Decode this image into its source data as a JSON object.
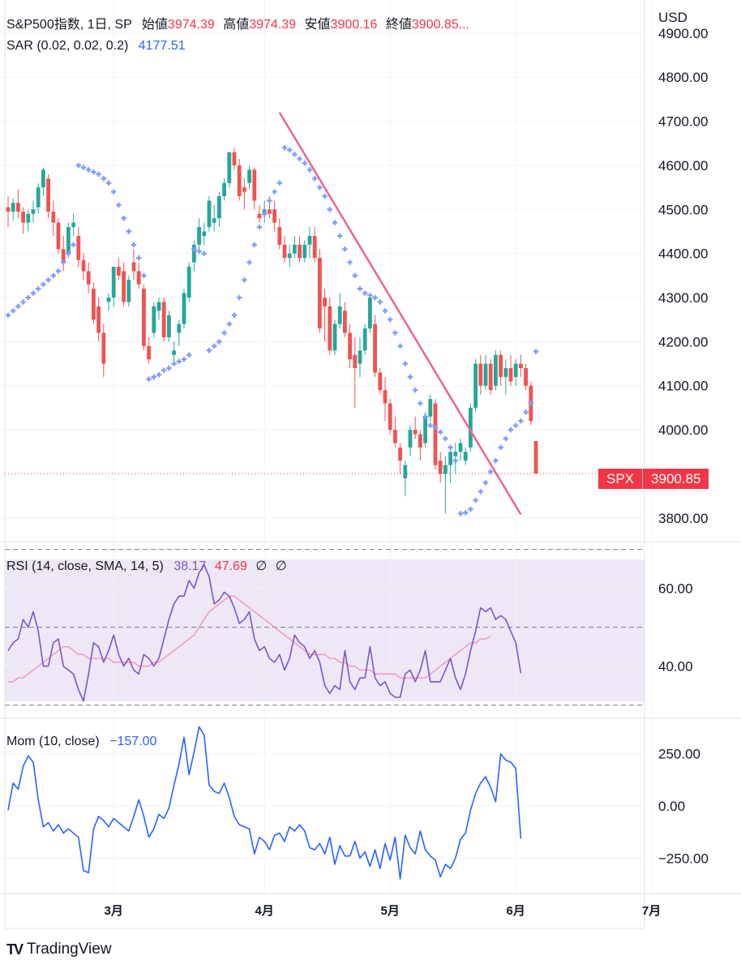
{
  "header": {
    "symbol": "S&P500指数, 1日, SP",
    "open_label": "始値",
    "open": "3974.39",
    "high_label": "高値",
    "high": "3974.39",
    "low_label": "安値",
    "low": "3900.16",
    "close_label": "終値",
    "close": "3900.85..."
  },
  "sar_legend": {
    "label": "SAR (0.02, 0.02, 0.2)",
    "value": "4177.51"
  },
  "rsi_legend": {
    "label": "RSI (14, close, SMA, 14, 5)",
    "rsi": "38.17",
    "sma": "47.69",
    "na1": "∅",
    "na2": "∅"
  },
  "mom_legend": {
    "label": "Mom (10, close)",
    "value": "−157.00"
  },
  "currency": "USD",
  "price_tag": {
    "symbol": "SPX",
    "value": "3900.85"
  },
  "brand": {
    "logo": "TV",
    "name": "TradingView"
  },
  "colors": {
    "up": "#26a69a",
    "down": "#ef5350",
    "sar": "#7b9cff",
    "trendline": "#f06292",
    "rsi": "#7e57c2",
    "rsi_sma": "#f48fb1",
    "mom": "#2962ff",
    "rsi_band": "#ede7f6"
  },
  "chart_data": [
    {
      "type": "candlestick",
      "ylim": [
        3750,
        4920
      ],
      "yticks": [
        "4900.00",
        "4800.00",
        "4700.00",
        "4600.00",
        "4500.00",
        "4400.00",
        "4300.00",
        "4200.00",
        "4100.00",
        "4000.00",
        "3800.00"
      ],
      "ytick_values": [
        4900,
        4800,
        4700,
        4600,
        4500,
        4400,
        4300,
        4200,
        4100,
        4000,
        3800
      ],
      "xticks": [
        "3月",
        "4月",
        "5月",
        "6月",
        "7月"
      ],
      "xtick_index": [
        21,
        51,
        76,
        101,
        128
      ],
      "last_price": 3900.85,
      "ohlc": [
        [
          4505,
          4530,
          4460,
          4495
        ],
        [
          4495,
          4525,
          4475,
          4515
        ],
        [
          4515,
          4545,
          4480,
          4495
        ],
        [
          4495,
          4505,
          4445,
          4470
        ],
        [
          4470,
          4500,
          4450,
          4490
        ],
        [
          4490,
          4520,
          4470,
          4500
        ],
        [
          4505,
          4560,
          4490,
          4550
        ],
        [
          4550,
          4595,
          4530,
          4590
        ],
        [
          4570,
          4580,
          4480,
          4495
        ],
        [
          4495,
          4520,
          4440,
          4470
        ],
        [
          4470,
          4480,
          4400,
          4410
        ],
        [
          4410,
          4440,
          4360,
          4380
        ],
        [
          4400,
          4470,
          4390,
          4460
        ],
        [
          4460,
          4490,
          4440,
          4470
        ],
        [
          4440,
          4460,
          4370,
          4385
        ],
        [
          4385,
          4400,
          4340,
          4360
        ],
        [
          4360,
          4380,
          4310,
          4330
        ],
        [
          4320,
          4335,
          4240,
          4250
        ],
        [
          4280,
          4300,
          4200,
          4220
        ],
        [
          4220,
          4240,
          4120,
          4150
        ],
        [
          4290,
          4310,
          4270,
          4300
        ],
        [
          4300,
          4370,
          4280,
          4370
        ],
        [
          4370,
          4390,
          4340,
          4350
        ],
        [
          4360,
          4380,
          4280,
          4290
        ],
        [
          4290,
          4350,
          4280,
          4340
        ],
        [
          4380,
          4410,
          4340,
          4360
        ],
        [
          4360,
          4380,
          4320,
          4330
        ],
        [
          4320,
          4330,
          4180,
          4190
        ],
        [
          4190,
          4210,
          4150,
          4160
        ],
        [
          4220,
          4290,
          4210,
          4280
        ],
        [
          4270,
          4300,
          4250,
          4290
        ],
        [
          4290,
          4300,
          4200,
          4210
        ],
        [
          4210,
          4270,
          4200,
          4260
        ],
        [
          4170,
          4200,
          4150,
          4180
        ],
        [
          4220,
          4250,
          4190,
          4240
        ],
        [
          4240,
          4320,
          4230,
          4310
        ],
        [
          4300,
          4380,
          4290,
          4370
        ],
        [
          4380,
          4430,
          4360,
          4420
        ],
        [
          4420,
          4480,
          4410,
          4460
        ],
        [
          4440,
          4470,
          4420,
          4450
        ],
        [
          4460,
          4530,
          4450,
          4520
        ],
        [
          4470,
          4510,
          4450,
          4480
        ],
        [
          4480,
          4540,
          4460,
          4530
        ],
        [
          4530,
          4570,
          4520,
          4560
        ],
        [
          4560,
          4630,
          4550,
          4630
        ],
        [
          4630,
          4640,
          4590,
          4600
        ],
        [
          4600,
          4615,
          4520,
          4530
        ],
        [
          4550,
          4570,
          4500,
          4540
        ],
        [
          4560,
          4600,
          4545,
          4590
        ],
        [
          4590,
          4595,
          4500,
          4520
        ],
        [
          4490,
          4510,
          4470,
          4480
        ],
        [
          4490,
          4520,
          4470,
          4500
        ],
        [
          4500,
          4530,
          4480,
          4490
        ],
        [
          4500,
          4520,
          4450,
          4470
        ],
        [
          4460,
          4480,
          4410,
          4420
        ],
        [
          4420,
          4440,
          4380,
          4390
        ],
        [
          4390,
          4420,
          4370,
          4400
        ],
        [
          4400,
          4440,
          4390,
          4420
        ],
        [
          4420,
          4440,
          4380,
          4390
        ],
        [
          4390,
          4430,
          4380,
          4420
        ],
        [
          4420,
          4460,
          4390,
          4440
        ],
        [
          4440,
          4460,
          4380,
          4390
        ],
        [
          4390,
          4410,
          4220,
          4230
        ],
        [
          4300,
          4320,
          4200,
          4280
        ],
        [
          4280,
          4300,
          4170,
          4180
        ],
        [
          4180,
          4250,
          4170,
          4240
        ],
        [
          4240,
          4310,
          4230,
          4280
        ],
        [
          4270,
          4290,
          4210,
          4220
        ],
        [
          4220,
          4240,
          4140,
          4160
        ],
        [
          4170,
          4210,
          4050,
          4140
        ],
        [
          4150,
          4210,
          4120,
          4180
        ],
        [
          4180,
          4240,
          4170,
          4230
        ],
        [
          4230,
          4310,
          4220,
          4300
        ],
        [
          4240,
          4260,
          4120,
          4130
        ],
        [
          4130,
          4140,
          4080,
          4090
        ],
        [
          4090,
          4120,
          4020,
          4060
        ],
        [
          4060,
          4070,
          3990,
          4000
        ],
        [
          4000,
          4030,
          3960,
          3970
        ],
        [
          3960,
          3970,
          3900,
          3930
        ],
        [
          3890,
          3930,
          3850,
          3920
        ],
        [
          3960,
          4010,
          3940,
          4000
        ],
        [
          4000,
          4030,
          3980,
          3990
        ],
        [
          3990,
          4000,
          3930,
          3960
        ],
        [
          3970,
          4040,
          3960,
          4030
        ],
        [
          4030,
          4080,
          4020,
          4070
        ],
        [
          4060,
          4070,
          3910,
          3920
        ],
        [
          3930,
          3950,
          3880,
          3900
        ],
        [
          3900,
          3940,
          3810,
          3920
        ],
        [
          3920,
          3960,
          3880,
          3950
        ],
        [
          3940,
          3970,
          3900,
          3950
        ],
        [
          3950,
          3980,
          3930,
          3970
        ],
        [
          3930,
          3960,
          3920,
          3950
        ],
        [
          3960,
          4060,
          3950,
          4050
        ],
        [
          4050,
          4160,
          4040,
          4150
        ],
        [
          4150,
          4170,
          4080,
          4100
        ],
        [
          4100,
          4170,
          4090,
          4150
        ],
        [
          4150,
          4160,
          4080,
          4090
        ],
        [
          4100,
          4180,
          4090,
          4170
        ],
        [
          4170,
          4180,
          4100,
          4120
        ],
        [
          4120,
          4160,
          4080,
          4140
        ],
        [
          4140,
          4170,
          4100,
          4110
        ],
        [
          4120,
          4160,
          4100,
          4150
        ],
        [
          4150,
          4170,
          4120,
          4140
        ],
        [
          4140,
          4150,
          4090,
          4100
        ],
        [
          4100,
          4110,
          4010,
          4020
        ],
        [
          3974.39,
          3974.39,
          3900.16,
          3900.85
        ]
      ],
      "sar": [
        4260,
        4270,
        4280,
        4290,
        4300,
        4310,
        4320,
        4330,
        4340,
        4350,
        4360,
        4380,
        4400,
        4420,
        4600,
        4595,
        4590,
        4585,
        4580,
        4570,
        4560,
        4540,
        4510,
        4480,
        4450,
        4420,
        4390,
        4350,
        4115,
        4120,
        4125,
        4135,
        4140,
        4150,
        4155,
        4160,
        4170,
        4410,
        4405,
        4400,
        4180,
        4190,
        4200,
        4220,
        4240,
        4260,
        4300,
        4340,
        4380,
        4420,
        4460,
        4490,
        4520,
        4540,
        4560,
        4640,
        4635,
        4625,
        4615,
        4605,
        4590,
        4570,
        4550,
        4530,
        4500,
        4470,
        4440,
        4410,
        4380,
        4350,
        4320,
        4310,
        4305,
        4300,
        4290,
        4270,
        4250,
        4220,
        4190,
        4150,
        4120,
        4090,
        4060,
        4030,
        4010,
        4005,
        3995,
        3980,
        3960,
        3930,
        3810,
        3812,
        3820,
        3840,
        3860,
        3880,
        3905,
        3930,
        3960,
        3980,
        4000,
        4010,
        4020,
        4040,
        4060,
        4177.51
      ],
      "sar_x_start": 0,
      "trendline": [
        [
          4720,
          54
        ],
        [
          3808,
          102
        ]
      ]
    },
    {
      "type": "line",
      "title": "RSI (14, close, SMA, 14, 5)",
      "ylim": [
        27,
        72
      ],
      "yticks": [
        "60.00",
        "40.00"
      ],
      "ytick_values": [
        60,
        40
      ],
      "bands": [
        70,
        50,
        30
      ],
      "series": [
        {
          "name": "RSI",
          "values": [
            44,
            46,
            47,
            52,
            50,
            54,
            49,
            40,
            40,
            46,
            47,
            40,
            39,
            38,
            34,
            31,
            38,
            46,
            45,
            41,
            44,
            48,
            43,
            40,
            42,
            39,
            38,
            43,
            42,
            40,
            42,
            47,
            52,
            56,
            58,
            58,
            62,
            60,
            64,
            66,
            63,
            56,
            57,
            59,
            58,
            55,
            51,
            52,
            54,
            47,
            44,
            45,
            42,
            41,
            43,
            39,
            42,
            48,
            46,
            45,
            42,
            44,
            41,
            35,
            33,
            35,
            34,
            44,
            36,
            34,
            37,
            37,
            45,
            37,
            35,
            36,
            33,
            32,
            32,
            38,
            39,
            36,
            39,
            44,
            36,
            36,
            36,
            39,
            42,
            37,
            34,
            38,
            44,
            49,
            55,
            54,
            55,
            52,
            53,
            52,
            49,
            46,
            38.17
          ]
        },
        {
          "name": "SMA",
          "values": [
            36,
            36,
            37,
            37,
            38,
            39,
            40,
            41,
            42,
            43,
            44,
            45,
            45,
            44,
            43,
            43,
            42,
            42,
            42,
            42,
            42,
            41,
            41,
            41,
            41,
            41,
            40,
            40,
            40,
            41,
            41,
            42,
            43,
            44,
            45,
            46,
            47,
            48,
            50,
            52,
            54,
            55,
            56,
            57,
            58,
            58,
            57,
            56,
            55,
            54,
            53,
            52,
            51,
            50,
            49,
            48,
            47,
            46,
            45,
            44,
            43,
            43,
            43,
            43,
            42,
            42,
            41,
            41,
            40,
            40,
            39,
            39,
            39,
            38,
            38,
            38,
            38,
            38,
            37,
            37,
            37,
            37,
            37,
            37,
            38,
            39,
            40,
            41,
            42,
            43,
            44,
            45,
            46,
            46,
            47,
            47,
            47.69
          ]
        }
      ]
    },
    {
      "type": "line",
      "title": "Mom (10, close)",
      "ylim": [
        -420,
        420
      ],
      "yticks": [
        "250.00",
        "0.00",
        "−250.00"
      ],
      "ytick_values": [
        250,
        0,
        -250
      ],
      "series": [
        {
          "name": "Mom",
          "values": [
            -20,
            110,
            80,
            190,
            240,
            210,
            30,
            -100,
            -80,
            -120,
            -90,
            -130,
            -110,
            -130,
            -150,
            -310,
            -320,
            -110,
            -50,
            -70,
            -100,
            -60,
            -80,
            -100,
            -120,
            -50,
            30,
            -50,
            -150,
            -110,
            -40,
            -60,
            -10,
            100,
            200,
            330,
            150,
            260,
            380,
            340,
            100,
            70,
            60,
            110,
            40,
            -50,
            -90,
            -100,
            -110,
            -230,
            -150,
            -170,
            -210,
            -140,
            -130,
            -170,
            -100,
            -120,
            -90,
            -120,
            -200,
            -210,
            -180,
            -230,
            -150,
            -280,
            -190,
            -240,
            -240,
            -170,
            -250,
            -220,
            -290,
            -210,
            -300,
            -180,
            -260,
            -150,
            -350,
            -140,
            -200,
            -230,
            -120,
            -210,
            -240,
            -260,
            -340,
            -280,
            -300,
            -250,
            -160,
            -130,
            -20,
            60,
            110,
            140,
            90,
            20,
            250,
            220,
            210,
            180,
            -157
          ]
        }
      ]
    }
  ]
}
